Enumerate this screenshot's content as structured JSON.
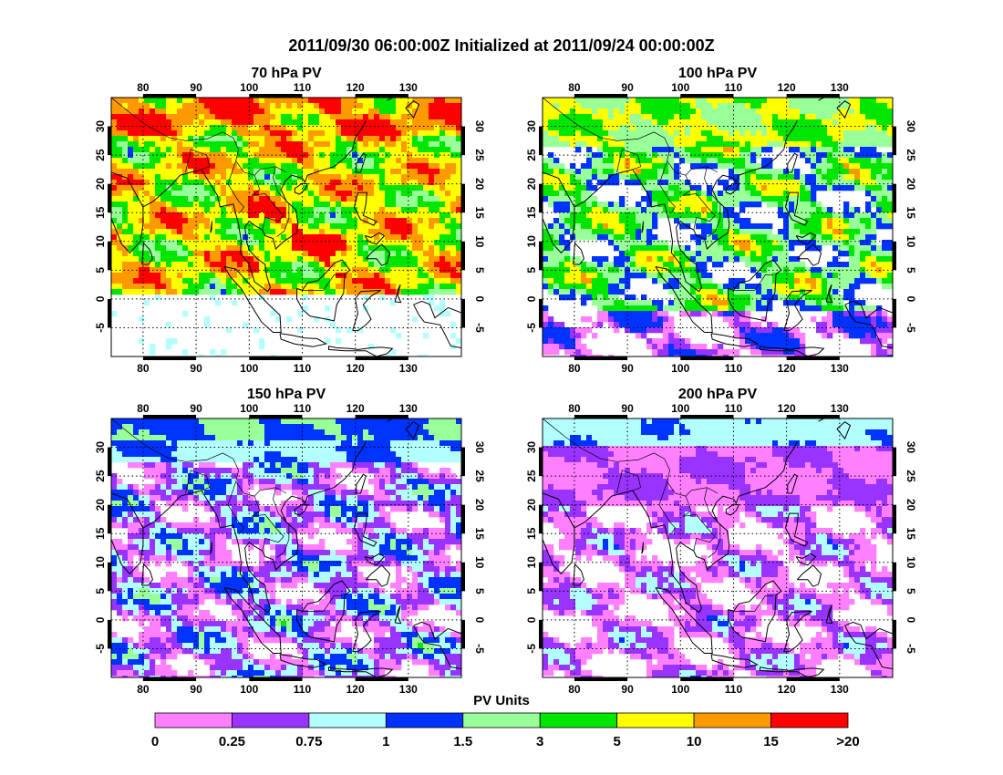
{
  "title": "2011/09/30 06:00:00Z Initialized at 2011/09/24 00:00:00Z",
  "panels": [
    {
      "title": "70 hPa PV",
      "background_class": "0.75-1",
      "field": "high"
    },
    {
      "title": "100 hPa PV",
      "background_class": "3-5",
      "field": "mid"
    },
    {
      "title": "150 hPa PV",
      "background_class": "0-0.25",
      "field": "low"
    },
    {
      "title": "200 hPa PV",
      "background_class": "0-0.25",
      "field": "lowest"
    }
  ],
  "lon_ticks": [
    "80",
    "90",
    "100",
    "110",
    "120",
    "130"
  ],
  "lat_ticks": [
    "30",
    "25",
    "20",
    "15",
    "10",
    "5",
    "0",
    "-5"
  ],
  "map_extent": {
    "lon": [
      74,
      140
    ],
    "lat": [
      -10,
      35
    ]
  },
  "legend": {
    "title": "PV Units",
    "labels": [
      "0",
      "0.25",
      "0.75",
      "1",
      "1.5",
      "3",
      "5",
      "10",
      "15",
      ">20"
    ],
    "colors": [
      "#ff80ff",
      "#9933ff",
      "#b3ffff",
      "#0033ff",
      "#99ff99",
      "#00e600",
      "#ffff00",
      "#ff9900",
      "#ff0000"
    ]
  }
}
